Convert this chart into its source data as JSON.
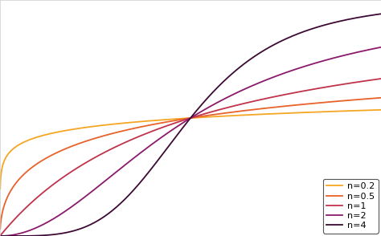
{
  "title": "",
  "hill_coefficients": [
    0.2,
    0.5,
    1,
    2,
    4
  ],
  "colors": [
    "#f5a623",
    "#e8622a",
    "#c0334a",
    "#8b1a6b",
    "#3d0a35"
  ],
  "line_widths": [
    1.3,
    1.3,
    1.3,
    1.3,
    1.3
  ],
  "legend_labels": [
    "n=0.2",
    "n=0.5",
    "n=1",
    "n=2",
    "n=4"
  ],
  "x_min": 0.0,
  "x_max": 2.0,
  "y_min": 0.0,
  "y_max": 1.0,
  "Kd": 1.0,
  "background_color": "#ffffff",
  "grid_color": "#d8d8d8",
  "legend_loc": "lower right",
  "legend_fontsize": 8
}
